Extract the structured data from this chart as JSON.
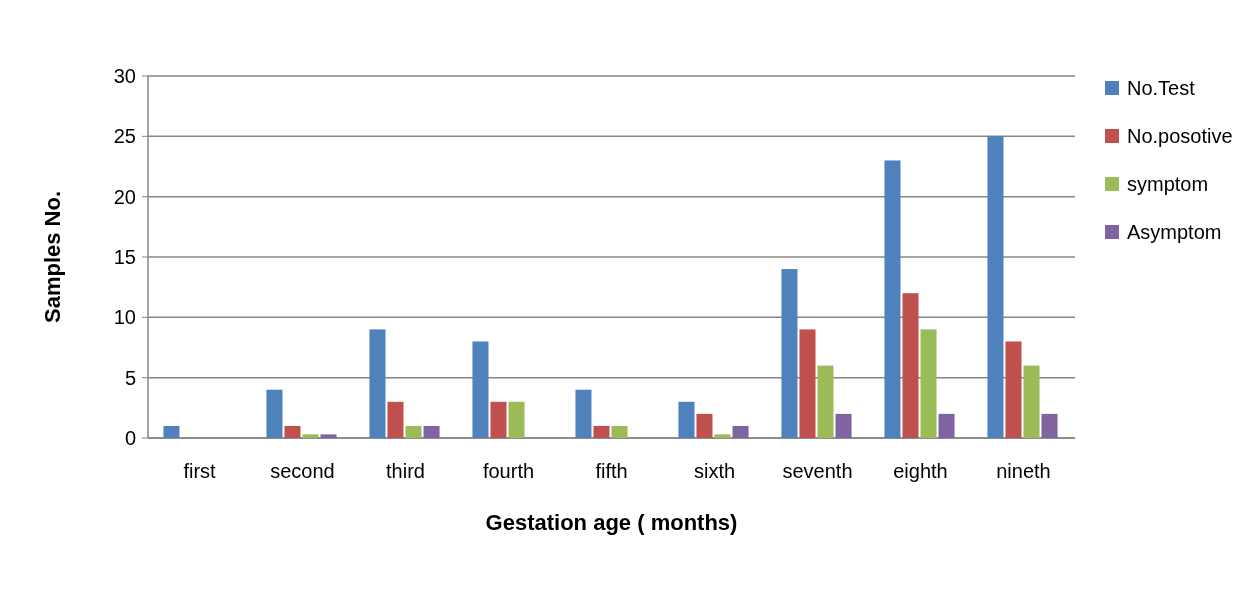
{
  "chart_data": {
    "type": "bar",
    "xlabel": "Gestation age ( months)",
    "ylabel": "Samples No.",
    "categories": [
      "first",
      "second",
      "third",
      "fourth",
      "fifth",
      "sixth",
      "seventh",
      "eighth",
      "nineth"
    ],
    "series": [
      {
        "name": "No.Test",
        "color": "#4f81bd",
        "values": [
          1,
          4,
          9,
          8,
          4,
          3,
          14,
          23,
          25
        ]
      },
      {
        "name": "No.posotive",
        "color": "#c0504d",
        "values": [
          0,
          1,
          3,
          3,
          1,
          2,
          9,
          12,
          8
        ]
      },
      {
        "name": "symptom",
        "color": "#9bbb59",
        "values": [
          0,
          0.3,
          1,
          3,
          1,
          0.3,
          6,
          9,
          6
        ]
      },
      {
        "name": "Asymptom",
        "color": "#8064a2",
        "values": [
          0,
          0.3,
          1,
          0,
          0,
          1,
          2,
          2,
          2
        ]
      }
    ],
    "ylim": [
      0,
      30
    ],
    "yticks": [
      0,
      5,
      10,
      15,
      20,
      25,
      30
    ],
    "grid": "y",
    "legend": "right"
  }
}
